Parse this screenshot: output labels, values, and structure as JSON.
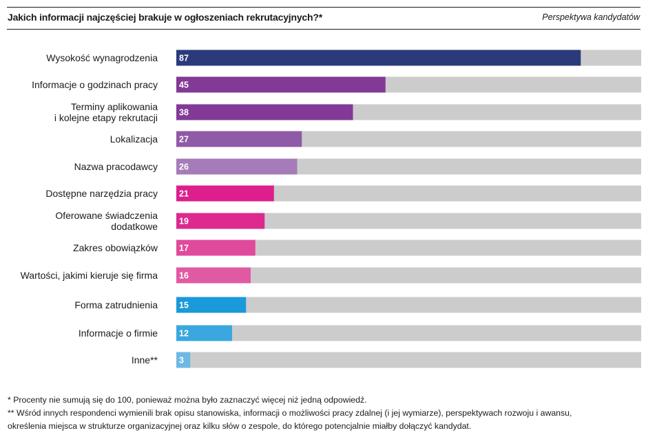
{
  "header": {
    "title": "Jakich informacji najczęściej brakuje w ogłoszeniach rekrutacyjnych?*",
    "subtitle": "Perspektywa kandydatów"
  },
  "footnotes": {
    "note1": "* Procenty nie sumują się do 100, ponieważ można było zaznaczyć więcej niż jedną odpowiedź.",
    "note2": "** Wśród innych respondenci wymienili brak opisu stanowiska, informacji o możliwości pracy zdalnej (i jej wymiarze), perspektywach rozwoju i awansu,",
    "note3": "określenia miejsca w strukturze organizacyjnej oraz kilku słów o zespole, do którego potencjalnie miałby dołączyć kandydat."
  },
  "chart_data": {
    "type": "bar",
    "orientation": "horizontal",
    "max": 100,
    "background_bar_color": "#cccccc",
    "categories": [
      [
        "Wysokość wynagrodzenia"
      ],
      [
        "Informacje o godzinach pracy"
      ],
      [
        "Terminy aplikowania",
        "i kolejne etapy rekrutacji"
      ],
      [
        "Lokalizacja"
      ],
      [
        "Nazwa pracodawcy"
      ],
      [
        "Dostępne narzędzia pracy"
      ],
      [
        "Oferowane świadczenia",
        "dodatkowe"
      ],
      [
        "Zakres obowiązków"
      ],
      [
        "Wartości, jakimi kieruje się firma"
      ],
      [
        "Forma zatrudnienia"
      ],
      [
        "Informacje o firmie"
      ],
      [
        "Inne**"
      ]
    ],
    "values": [
      87,
      45,
      38,
      27,
      26,
      21,
      19,
      17,
      16,
      15,
      12,
      3
    ],
    "colors": [
      "#2b3a7a",
      "#823a96",
      "#823a96",
      "#8f5aa6",
      "#a57cb8",
      "#dc1f8c",
      "#dc2a8f",
      "#e04a9c",
      "#e05aa3",
      "#1a9ad8",
      "#3aa8df",
      "#6db9e4"
    ]
  }
}
